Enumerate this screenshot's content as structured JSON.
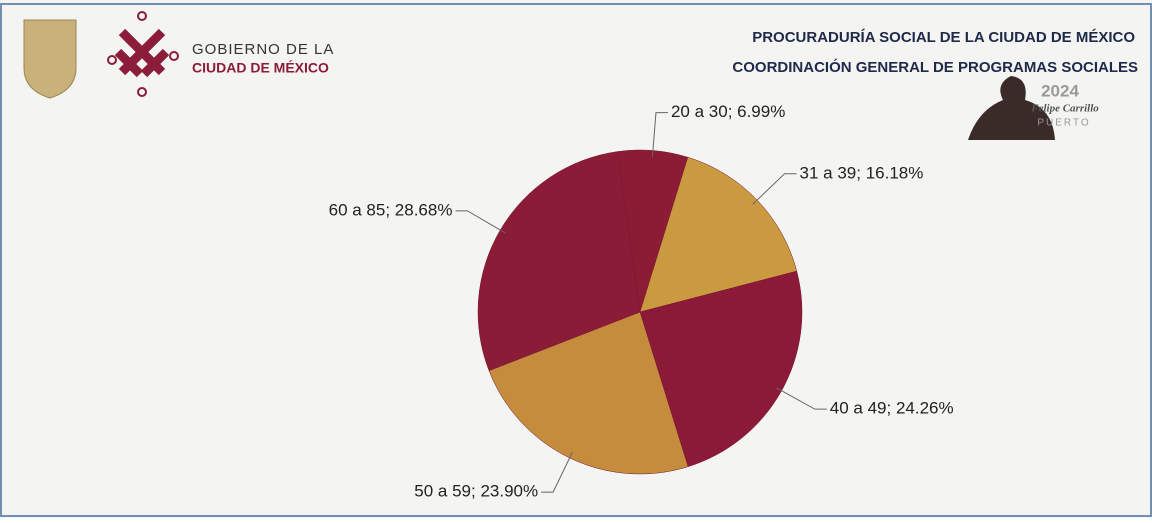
{
  "header": {
    "logo_line1": "GOBIERNO DE LA",
    "logo_line2": "CIUDAD DE MÉXICO",
    "org_line1": "PROCURADURÍA SOCIAL DE LA CIUDAD DE MÉXICO",
    "org_line2": "COORDINACIÓN GENERAL DE PROGRAMAS SOCIALES",
    "badge_year": "2024",
    "badge_name": "Felipe Carrillo",
    "badge_surname": "PUERTO"
  },
  "chart_data": {
    "type": "pie",
    "values": [
      6.99,
      16.18,
      24.26,
      23.9,
      28.68
    ],
    "value_labels": [
      "20 a 30; 6.99%",
      "31 a 39; 16.18%",
      "40 a 49; 24.26%",
      "50 a 59; 23.90%",
      "60 a 85; 28.68%"
    ],
    "colors": [
      "#8c1c36",
      "#c99a40",
      "#8a1a38",
      "#c48c3c",
      "#8b1c37"
    ]
  }
}
